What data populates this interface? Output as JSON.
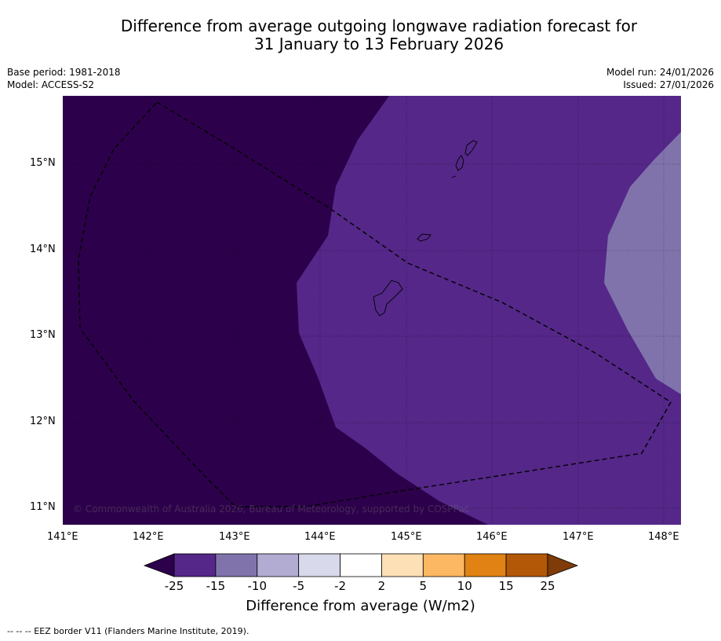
{
  "title": {
    "line1": "Difference from average outgoing longwave radiation forecast for",
    "line2": "31 January to 13 February 2026"
  },
  "meta": {
    "base_period": "Base period: 1981-2018",
    "model": "Model: ACCESS-S2",
    "model_run": "Model run: 24/01/2026",
    "issued": "Issued: 27/01/2026"
  },
  "map": {
    "lat_ticks": [
      "15°N",
      "14°N",
      "13°N",
      "12°N",
      "11°N"
    ],
    "lon_ticks": [
      "141°E",
      "142°E",
      "143°E",
      "144°E",
      "145°E",
      "146°E",
      "147°E",
      "148°E"
    ],
    "copyright": "© Commonwealth of Australia 2026, Bureau of Meteorology, supported by COSPPac"
  },
  "colorbar": {
    "labels": [
      "-25",
      "-15",
      "-10",
      "-5",
      "-2",
      "2",
      "5",
      "10",
      "15",
      "25"
    ],
    "colors": [
      "#2d004b",
      "#542788",
      "#8073ac",
      "#b2abd2",
      "#d8daeb",
      "#ffffff",
      "#fee0b6",
      "#fdb863",
      "#e08214",
      "#b35806",
      "#7f3b08"
    ],
    "title": "Difference from average (W/m2)"
  },
  "footer": "--  --  -- EEZ border V11 (Flanders Marine Institute, 2019)."
}
